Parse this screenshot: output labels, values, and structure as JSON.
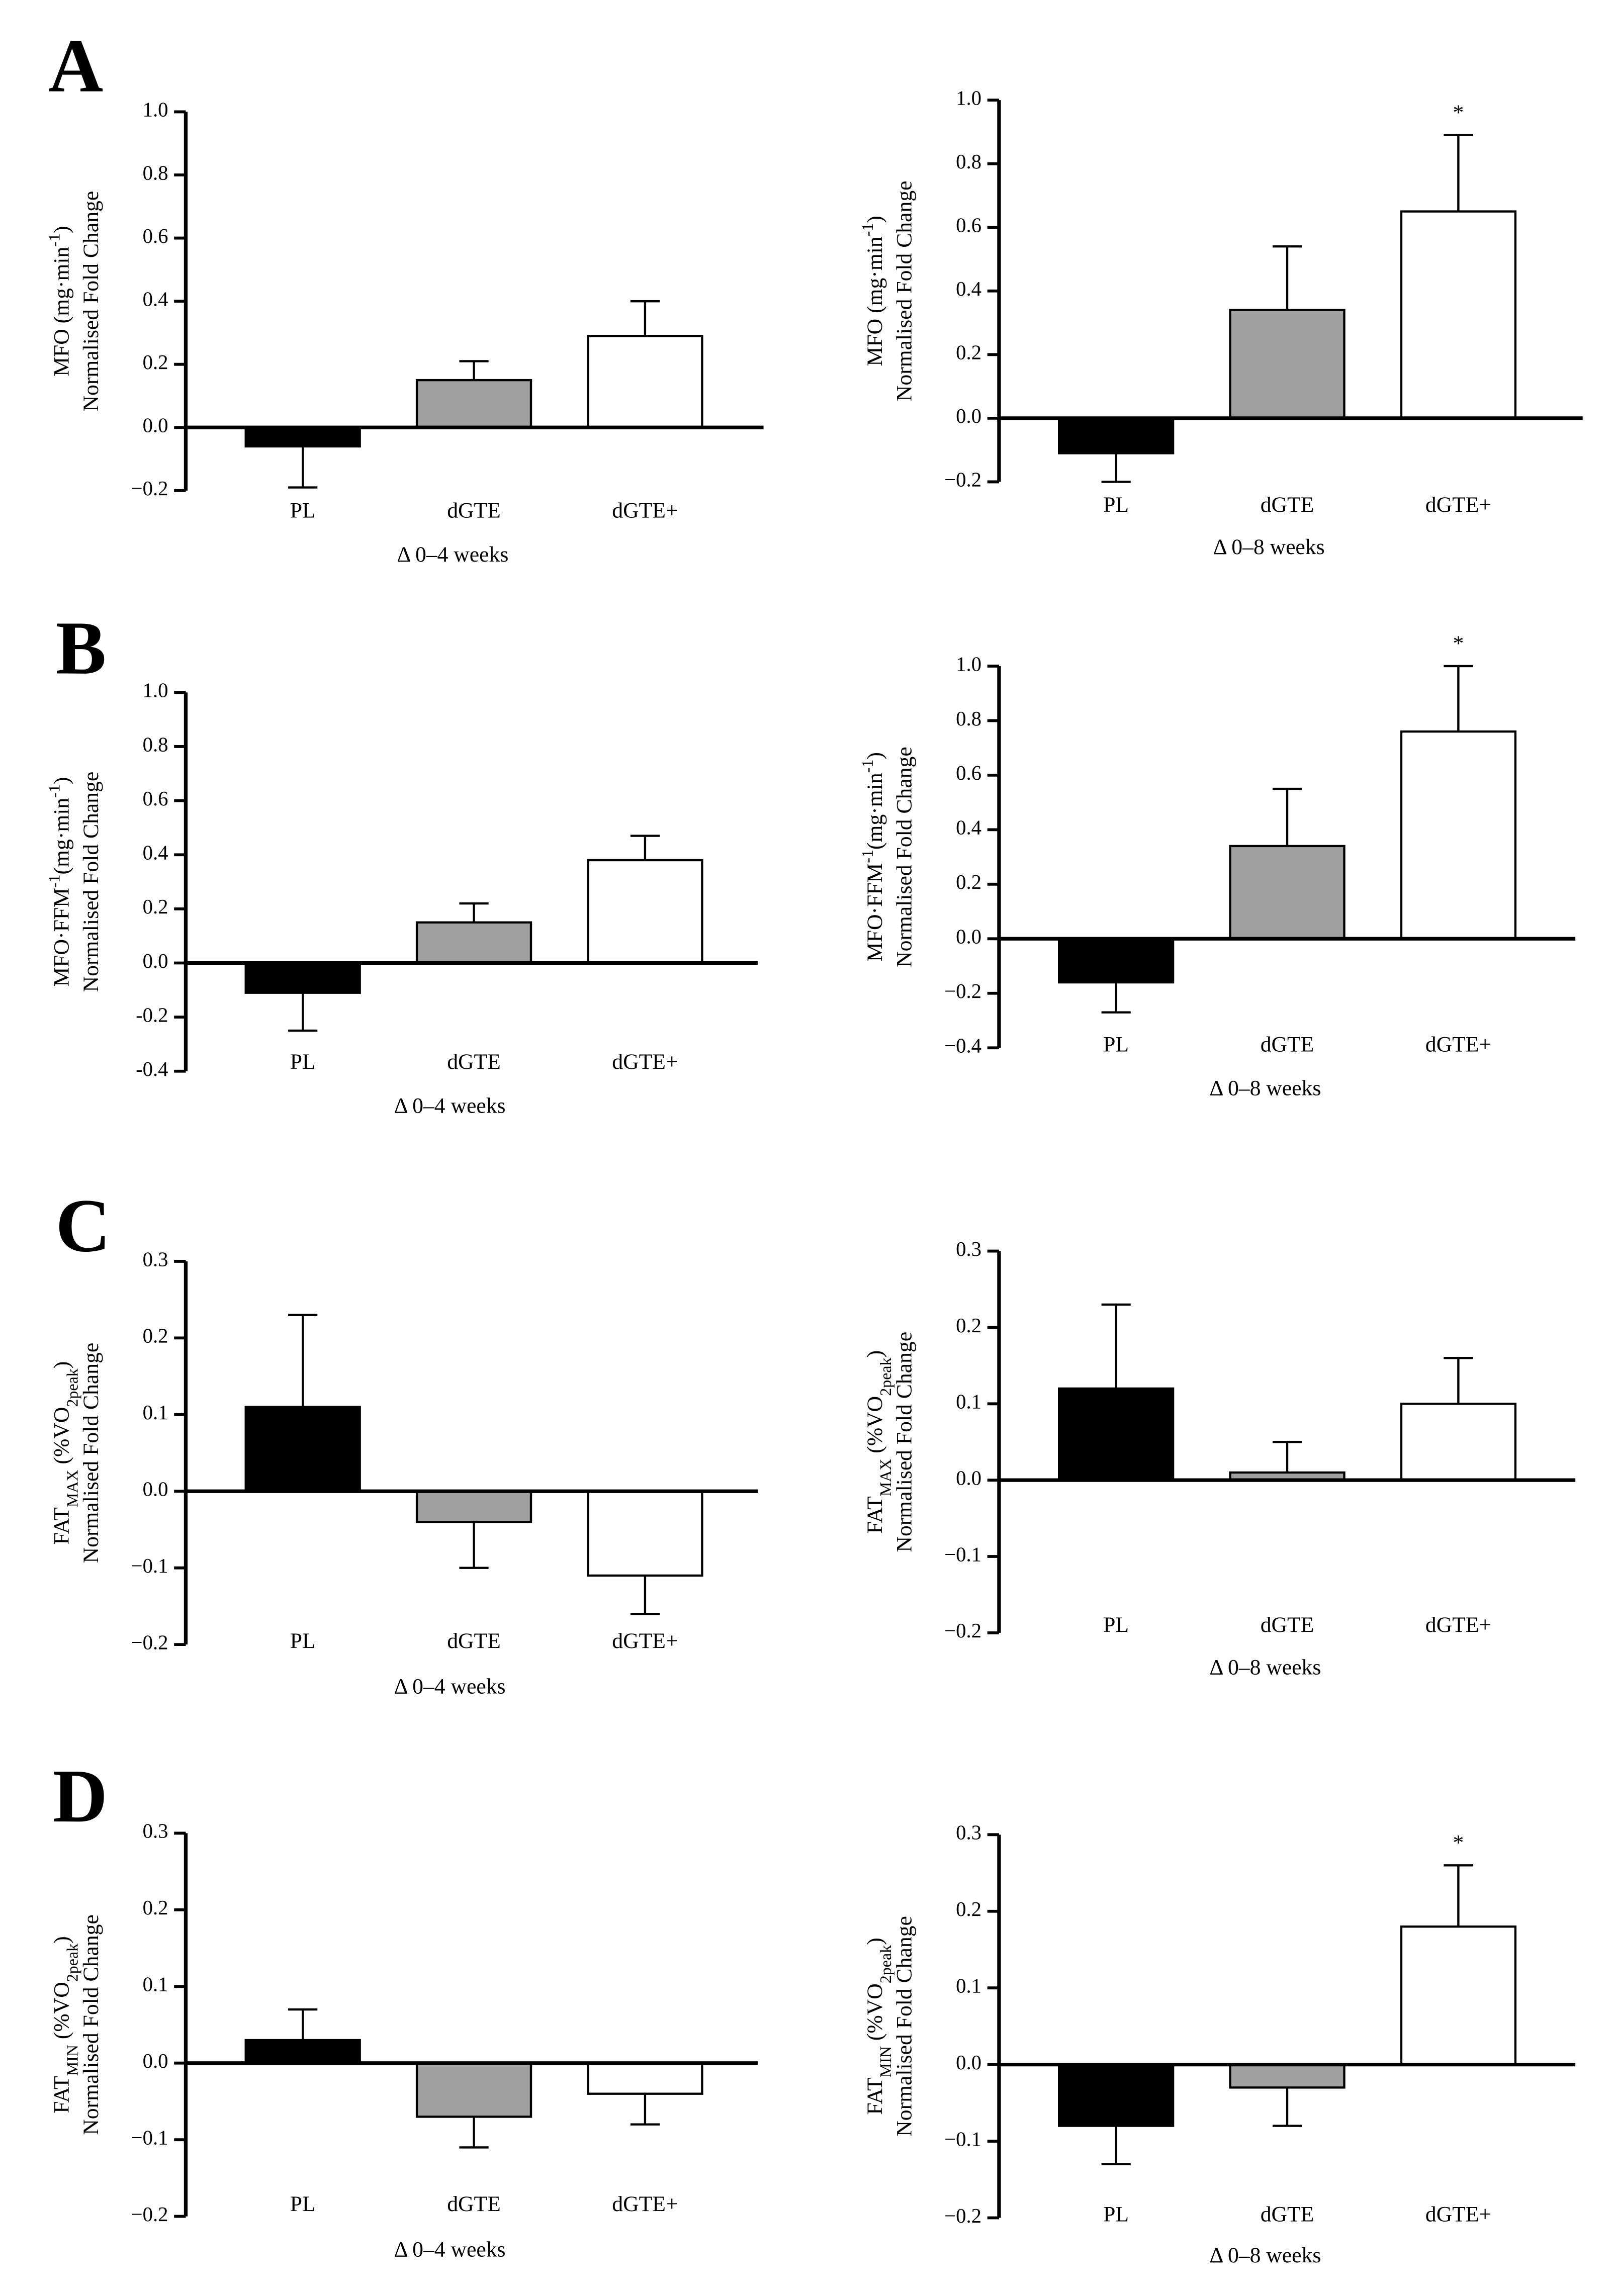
{
  "chart_data": [
    {
      "type": "bar",
      "panel": "A",
      "ylabel": [
        {
          "text": "MFO (mg·min"
        },
        {
          "text": "-1",
          "shift": "super"
        },
        {
          "text": ")"
        }
      ],
      "ylabel2": "Normalised Fold Change",
      "xlabel": "Δ 0–4 weeks",
      "categories": [
        "PL",
        "dGTE",
        "dGTE+"
      ],
      "colors": [
        "#000000",
        "#a0a0a0",
        "#ffffff"
      ],
      "values": [
        -0.06,
        0.15,
        0.29
      ],
      "errors": [
        0.13,
        0.06,
        0.11
      ],
      "significance": [
        null,
        null,
        null
      ],
      "ylim": [
        -0.2,
        1.0
      ],
      "yticks": [
        {
          "value": -0.2,
          "label": "−0.2"
        },
        {
          "value": 0,
          "label": "0.0"
        },
        0.2,
        0.4,
        0.6,
        0.8,
        {
          "value": 1,
          "label": "1.0"
        }
      ]
    },
    {
      "type": "bar",
      "ylabel": [
        {
          "text": "MFO (mg·min"
        },
        {
          "text": "-1",
          "shift": "super"
        },
        {
          "text": ")"
        }
      ],
      "ylabel2": "Normalised Fold Change",
      "xlabel": "Δ 0–8 weeks",
      "categories": [
        "PL",
        "dGTE",
        "dGTE+"
      ],
      "colors": [
        "#000000",
        "#a0a0a0",
        "#ffffff"
      ],
      "values": [
        -0.11,
        0.34,
        0.65
      ],
      "errors": [
        0.09,
        0.2,
        0.24
      ],
      "significance": [
        null,
        null,
        "*"
      ],
      "ylim": [
        -0.2,
        1.0
      ],
      "yticks": [
        {
          "value": -0.2,
          "label": "−0.2"
        },
        {
          "value": 0,
          "label": "0.0"
        },
        0.2,
        0.4,
        0.6,
        0.8,
        {
          "value": 1,
          "label": "1.0"
        }
      ]
    },
    {
      "type": "bar",
      "panel": "B",
      "ylabel": [
        {
          "text": "MFO·FFM"
        },
        {
          "text": "-1",
          "shift": "super"
        },
        {
          "text": "(mg·min"
        },
        {
          "text": "-1",
          "shift": "super"
        },
        {
          "text": ")"
        }
      ],
      "ylabel2": "Normalised Fold  Change",
      "xlabel": "Δ 0–4 weeks",
      "categories": [
        "PL",
        "dGTE",
        "dGTE+"
      ],
      "colors": [
        "#000000",
        "#a0a0a0",
        "#ffffff"
      ],
      "values": [
        -0.11,
        0.15,
        0.38
      ],
      "errors": [
        0.14,
        0.07,
        0.09
      ],
      "significance": [
        null,
        null,
        null
      ],
      "ylim": [
        -0.4,
        1.0
      ],
      "yticks": [
        {
          "value": -0.4,
          "label": "-0.4"
        },
        {
          "value": -0.2,
          "label": "-0.2"
        },
        {
          "value": 0,
          "label": "0.0"
        },
        0.2,
        0.4,
        0.6,
        0.8,
        {
          "value": 1,
          "label": "1.0"
        }
      ]
    },
    {
      "type": "bar",
      "ylabel": [
        {
          "text": "MFO·FFM"
        },
        {
          "text": "-1",
          "shift": "super"
        },
        {
          "text": "(mg·min"
        },
        {
          "text": "-1",
          "shift": "super"
        },
        {
          "text": ")"
        }
      ],
      "ylabel2": "Normalised Fold  Change",
      "xlabel": "Δ 0–8 weeks",
      "categories": [
        "PL",
        "dGTE",
        "dGTE+"
      ],
      "colors": [
        "#000000",
        "#a0a0a0",
        "#ffffff"
      ],
      "values": [
        -0.16,
        0.34,
        0.76
      ],
      "errors": [
        0.11,
        0.21,
        0.24
      ],
      "significance": [
        null,
        null,
        "*"
      ],
      "ylim": [
        -0.4,
        1.0
      ],
      "yticks": [
        {
          "value": -0.4,
          "label": "−0.4"
        },
        {
          "value": -0.2,
          "label": "−0.2"
        },
        {
          "value": 0,
          "label": "0.0"
        },
        0.2,
        0.4,
        0.6,
        0.8,
        {
          "value": 1,
          "label": "1.0"
        }
      ]
    },
    {
      "type": "bar",
      "panel": "C",
      "ylabel": [
        {
          "text": "FAT"
        },
        {
          "text": "MAX",
          "shift": "sub"
        },
        {
          "text": " (%VO"
        },
        {
          "text": "2peak",
          "shift": "sub"
        },
        {
          "text": ")"
        }
      ],
      "ylabel2": "Normalised Fold  Change",
      "xlabel": "Δ 0–4 weeks",
      "categories": [
        "PL",
        "dGTE",
        "dGTE+"
      ],
      "colors": [
        "#000000",
        "#a0a0a0",
        "#ffffff"
      ],
      "values": [
        0.11,
        -0.04,
        -0.11
      ],
      "errors": [
        0.12,
        0.06,
        0.05
      ],
      "significance": [
        null,
        null,
        null
      ],
      "ylim": [
        -0.2,
        0.3
      ],
      "yticks": [
        {
          "value": -0.2,
          "label": "−0.2"
        },
        {
          "value": -0.1,
          "label": "−0.1"
        },
        {
          "value": 0,
          "label": "0.0"
        },
        0.1,
        0.2,
        0.3
      ]
    },
    {
      "type": "bar",
      "ylabel": [
        {
          "text": "FAT"
        },
        {
          "text": "MAX",
          "shift": "sub"
        },
        {
          "text": " (%VO"
        },
        {
          "text": "2peak",
          "shift": "sub"
        },
        {
          "text": ")"
        }
      ],
      "ylabel2": "Normalised Fold  Change",
      "xlabel": "Δ 0–8 weeks",
      "categories": [
        "PL",
        "dGTE",
        "dGTE+"
      ],
      "colors": [
        "#000000",
        "#a0a0a0",
        "#ffffff"
      ],
      "values": [
        0.12,
        0.01,
        0.1
      ],
      "errors": [
        0.11,
        0.04,
        0.06
      ],
      "significance": [
        null,
        null,
        null
      ],
      "ylim": [
        -0.2,
        0.3
      ],
      "yticks": [
        {
          "value": -0.2,
          "label": "−0.2"
        },
        {
          "value": -0.1,
          "label": "−0.1"
        },
        {
          "value": 0,
          "label": "0.0"
        },
        0.1,
        0.2,
        0.3
      ]
    },
    {
      "type": "bar",
      "panel": "D",
      "ylabel": [
        {
          "text": "FAT"
        },
        {
          "text": "MIN",
          "shift": "sub"
        },
        {
          "text": " (%VO"
        },
        {
          "text": "2peak",
          "shift": "sub"
        },
        {
          "text": ")"
        }
      ],
      "ylabel2": "Normalised Fold  Change",
      "xlabel": "Δ 0–4 weeks",
      "categories": [
        "PL",
        "dGTE",
        "dGTE+"
      ],
      "colors": [
        "#000000",
        "#a0a0a0",
        "#ffffff"
      ],
      "values": [
        0.03,
        -0.07,
        -0.04
      ],
      "errors": [
        0.04,
        0.04,
        0.04
      ],
      "significance": [
        null,
        null,
        null
      ],
      "ylim": [
        -0.2,
        0.3
      ],
      "yticks": [
        {
          "value": -0.2,
          "label": "−0.2"
        },
        {
          "value": -0.1,
          "label": "−0.1"
        },
        {
          "value": 0,
          "label": "0.0"
        },
        0.1,
        0.2,
        0.3
      ]
    },
    {
      "type": "bar",
      "ylabel": [
        {
          "text": "FAT"
        },
        {
          "text": "MIN",
          "shift": "sub"
        },
        {
          "text": " (%VO"
        },
        {
          "text": "2peak",
          "shift": "sub"
        },
        {
          "text": ")"
        }
      ],
      "ylabel2": "Normalised Fold  Change",
      "xlabel": "Δ 0–8 weeks",
      "categories": [
        "PL",
        "dGTE",
        "dGTE+"
      ],
      "colors": [
        "#000000",
        "#a0a0a0",
        "#ffffff"
      ],
      "values": [
        -0.08,
        -0.03,
        0.18
      ],
      "errors": [
        0.05,
        0.05,
        0.08
      ],
      "significance": [
        null,
        null,
        "*"
      ],
      "ylim": [
        -0.2,
        0.3
      ],
      "yticks": [
        {
          "value": -0.2,
          "label": "−0.2"
        },
        {
          "value": -0.1,
          "label": "−0.1"
        },
        {
          "value": 0,
          "label": "0.0"
        },
        0.1,
        0.2,
        0.3
      ]
    }
  ]
}
